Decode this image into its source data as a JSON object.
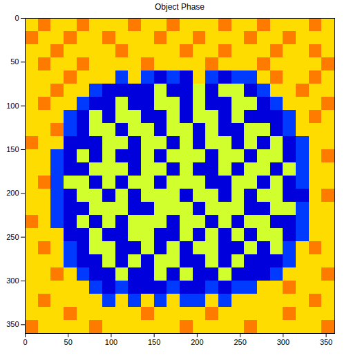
{
  "chart_data": {
    "type": "heatmap",
    "title": "Object Phase",
    "color": "jet",
    "xlim": [
      0,
      360
    ],
    "ylim": [
      360,
      0
    ],
    "xticks": [
      0,
      50,
      100,
      150,
      200,
      250,
      300,
      350
    ],
    "yticks": [
      0,
      50,
      100,
      150,
      200,
      250,
      300,
      350
    ],
    "zlim": [
      -3.14,
      3.14
    ],
    "x_edges": [
      0,
      15,
      30,
      45,
      60,
      75,
      90,
      105,
      120,
      135,
      150,
      165,
      180,
      195,
      210,
      225,
      240,
      255,
      270,
      285,
      300,
      315,
      330,
      345,
      360
    ],
    "y_edges": [
      0,
      15,
      30,
      45,
      60,
      75,
      90,
      105,
      120,
      135,
      150,
      165,
      180,
      195,
      210,
      225,
      240,
      255,
      270,
      285,
      300,
      315,
      330,
      345,
      360
    ],
    "cells": [
      [
        1,
        1.6,
        1,
        1,
        1.6,
        1,
        1,
        1,
        1.6,
        1,
        1,
        1.6,
        1,
        1,
        1,
        1.6,
        1,
        1,
        1.6,
        1,
        1,
        1,
        1.6,
        1
      ],
      [
        1.6,
        1,
        1,
        1.6,
        1,
        1,
        1.6,
        1,
        1,
        1,
        1.6,
        1,
        1,
        1.6,
        1,
        1,
        1,
        1.6,
        1,
        1,
        1.6,
        1,
        1,
        1
      ],
      [
        1,
        1,
        1.6,
        1,
        1,
        1,
        1,
        1.6,
        1,
        1,
        1,
        1,
        1.6,
        1,
        1,
        1.6,
        1,
        1,
        1,
        1.6,
        1,
        1,
        1.6,
        1
      ],
      [
        1,
        1.6,
        1,
        1,
        1.6,
        1,
        1,
        1,
        1,
        1.6,
        1,
        1,
        1,
        1,
        1.6,
        1,
        1,
        1,
        1.6,
        1,
        1,
        1,
        1,
        1.6
      ],
      [
        1,
        1,
        1,
        1.6,
        1,
        1,
        1,
        -2,
        1,
        -2,
        -2.6,
        -2,
        -2.6,
        1,
        -2,
        -2.6,
        -2,
        -2,
        1,
        1.6,
        1,
        1,
        1.6,
        1
      ],
      [
        1,
        1,
        1.6,
        1,
        1,
        -2,
        -2.6,
        -2.6,
        -2.6,
        -2.6,
        0.5,
        -2.6,
        -2.6,
        0.5,
        -2.6,
        0.5,
        0.5,
        -2.6,
        -2,
        1,
        1,
        1.6,
        1,
        1
      ],
      [
        1,
        1.6,
        1,
        1,
        -2,
        -2.6,
        -2.6,
        0.5,
        -2.6,
        -2.6,
        0.5,
        0.5,
        -2.6,
        0.5,
        -2.6,
        -2.6,
        0.5,
        0.5,
        -2.6,
        -2,
        1,
        1,
        1,
        1.6
      ],
      [
        1,
        1,
        1,
        -2,
        -2.6,
        0.5,
        -2.6,
        0.5,
        0.5,
        -2.6,
        -2.6,
        0.5,
        -2.6,
        0.5,
        0.5,
        -2.6,
        0.5,
        -2.6,
        -2.6,
        -2.6,
        -2,
        1,
        1.6,
        1
      ],
      [
        1,
        1,
        1.6,
        -2,
        -2.6,
        0.5,
        0.5,
        -2.6,
        0.5,
        0.5,
        -2.6,
        0.5,
        0.5,
        -2.6,
        0.5,
        -2.6,
        -2.6,
        0.5,
        0.5,
        -2.6,
        -2,
        1,
        1,
        1
      ],
      [
        1.6,
        1,
        1,
        -2.6,
        -2.6,
        -2.6,
        0.5,
        0.5,
        -2.6,
        0.5,
        0.5,
        -2.6,
        0.5,
        -2.6,
        0.5,
        0.5,
        -2.6,
        0.5,
        -2.6,
        0.5,
        -2.6,
        -2,
        1,
        1
      ],
      [
        1,
        1,
        -2,
        -2.6,
        0.5,
        -2.6,
        0.5,
        -2.6,
        -2.6,
        0.5,
        -2.6,
        0.5,
        0.5,
        0.5,
        -2.6,
        0.5,
        0.5,
        -2.6,
        0.5,
        0.5,
        -2.6,
        -2,
        1,
        1.6
      ],
      [
        1,
        1,
        -2,
        -2.6,
        -2.6,
        0.5,
        0.5,
        0.5,
        -2.6,
        0.5,
        0.5,
        -2.6,
        0.5,
        -2.6,
        -2.6,
        0.5,
        -2.6,
        0.5,
        0.5,
        -2.6,
        0.5,
        -2,
        1,
        1
      ],
      [
        1,
        1.6,
        -2,
        0.5,
        0.5,
        -2.6,
        0.5,
        -2.6,
        0.5,
        0.5,
        -2.6,
        0.5,
        0.5,
        0.5,
        -2.6,
        -2.6,
        0.5,
        0.5,
        -2.6,
        0.5,
        -2.6,
        -2,
        1,
        1
      ],
      [
        1,
        1,
        -2,
        -2.6,
        0.5,
        0.5,
        -2.6,
        0.5,
        -2.6,
        0.5,
        0.5,
        0.5,
        -2.6,
        0.5,
        0.5,
        -2.6,
        0.5,
        -2.6,
        0.5,
        0.5,
        -2.6,
        -2.6,
        1,
        1.6
      ],
      [
        1,
        1,
        -2,
        -2.6,
        -2.6,
        0.5,
        0.5,
        0.5,
        -2.6,
        -2.6,
        0.5,
        0.5,
        0.5,
        -2.6,
        0.5,
        0.5,
        0.5,
        -2.6,
        -2.6,
        0.5,
        0.5,
        -2,
        1,
        1
      ],
      [
        1.6,
        1,
        -2,
        -2.6,
        0.5,
        -2.6,
        0.5,
        -2.6,
        0.5,
        0.5,
        0.5,
        -2.6,
        0.5,
        0.5,
        -2.6,
        0.5,
        -2.6,
        0.5,
        0.5,
        -2.6,
        -2.6,
        -2,
        1,
        1
      ],
      [
        1,
        1,
        1,
        -2.6,
        -2.6,
        0.5,
        -2.6,
        -2.6,
        0.5,
        0.5,
        -2.6,
        -2.6,
        0.5,
        -2.6,
        0.5,
        -2.6,
        0.5,
        -2.6,
        0.5,
        0.5,
        -2.6,
        -2,
        1,
        1
      ],
      [
        1,
        1.6,
        1,
        -2,
        -2.6,
        0.5,
        0.5,
        -2.6,
        -2.6,
        0.5,
        -2.6,
        0.5,
        -2.6,
        0.5,
        0.5,
        -2.6,
        -2.6,
        0.5,
        -2.6,
        0.5,
        -2,
        1,
        1.6,
        1
      ],
      [
        1,
        1,
        1,
        -2,
        -2.6,
        -2.6,
        0.5,
        -2.6,
        0.5,
        -2.6,
        0.5,
        0.5,
        -2.6,
        -2.6,
        0.5,
        -2.6,
        0.5,
        -2.6,
        -2.6,
        -2.6,
        -2,
        1,
        1,
        1
      ],
      [
        1,
        1,
        1.6,
        1,
        -2,
        -2.6,
        -2.6,
        0.5,
        -2.6,
        -2.6,
        0.5,
        -2.6,
        0.5,
        -2.6,
        -2.6,
        0.5,
        -2.6,
        -2.6,
        -2.6,
        -2,
        1,
        1,
        1,
        1.6
      ],
      [
        1,
        1,
        1,
        1,
        1,
        -2,
        -2.6,
        -2,
        -2.6,
        -2.6,
        -2.6,
        -2,
        -2.6,
        -2.6,
        -2,
        -2.6,
        -2,
        -2,
        1,
        1,
        1.6,
        1,
        1,
        1
      ],
      [
        1,
        1.6,
        1,
        1,
        1,
        1,
        -2,
        1,
        -2,
        1,
        -2,
        1,
        -2,
        -2,
        1,
        -2,
        1,
        1,
        1,
        1,
        1,
        1,
        1.6,
        1
      ],
      [
        1,
        1,
        1,
        1.6,
        1,
        1,
        1,
        1,
        1,
        1.6,
        1,
        1,
        1,
        1,
        1.6,
        1,
        1,
        1,
        1,
        1,
        1.6,
        1,
        1,
        1
      ],
      [
        1.6,
        1,
        1,
        1,
        1,
        1.6,
        1,
        1,
        1,
        1,
        1,
        1,
        1.6,
        1,
        1,
        1,
        1,
        1.6,
        1,
        1,
        1,
        1,
        1,
        1.6
      ]
    ]
  }
}
